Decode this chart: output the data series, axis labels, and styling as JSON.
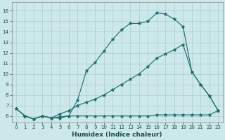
{
  "xlabel": "Humidex (Indice chaleur)",
  "xlim": [
    -0.5,
    23.5
  ],
  "ylim": [
    5.4,
    16.8
  ],
  "bg_color": "#cce8ea",
  "grid_color": "#aacccc",
  "line_color": "#1a6b6b",
  "line1_x": [
    0,
    1,
    2,
    3,
    4,
    5,
    6,
    7,
    8,
    9,
    10,
    11,
    12,
    13,
    14,
    15,
    16,
    17,
    18,
    19,
    20,
    21,
    22,
    23
  ],
  "line1_y": [
    6.7,
    6.0,
    5.7,
    6.0,
    5.8,
    5.8,
    6.0,
    7.5,
    10.3,
    11.1,
    12.2,
    13.3,
    14.2,
    14.8,
    14.8,
    15.0,
    15.8,
    15.7,
    15.2,
    14.5,
    10.2,
    9.0,
    7.9,
    6.5
  ],
  "line2_x": [
    0,
    1,
    2,
    3,
    4,
    5,
    6,
    7,
    8,
    9,
    10,
    11,
    12,
    13,
    14,
    15,
    16,
    17,
    18,
    19,
    20,
    21,
    22,
    23
  ],
  "line2_y": [
    6.7,
    6.0,
    5.7,
    6.0,
    5.8,
    6.2,
    6.5,
    7.0,
    7.3,
    7.6,
    8.0,
    8.5,
    9.0,
    9.5,
    10.0,
    10.7,
    11.5,
    11.9,
    12.3,
    12.8,
    10.2,
    9.0,
    7.9,
    6.5
  ],
  "line3_x": [
    0,
    1,
    2,
    3,
    4,
    5,
    6,
    7,
    8,
    9,
    10,
    11,
    12,
    13,
    14,
    15,
    16,
    17,
    18,
    19,
    20,
    21,
    22,
    23
  ],
  "line3_y": [
    6.7,
    6.0,
    5.7,
    6.0,
    5.8,
    5.9,
    6.0,
    6.0,
    6.0,
    6.0,
    6.0,
    6.0,
    6.0,
    6.0,
    6.0,
    6.0,
    6.1,
    6.1,
    6.1,
    6.1,
    6.1,
    6.1,
    6.1,
    6.5
  ],
  "xticks": [
    0,
    1,
    2,
    3,
    4,
    5,
    6,
    7,
    8,
    9,
    10,
    11,
    12,
    13,
    14,
    15,
    16,
    17,
    18,
    19,
    20,
    21,
    22,
    23
  ],
  "yticks": [
    6,
    7,
    8,
    9,
    10,
    11,
    12,
    13,
    14,
    15,
    16
  ],
  "tick_fontsize": 5.0,
  "xlabel_fontsize": 6.5
}
